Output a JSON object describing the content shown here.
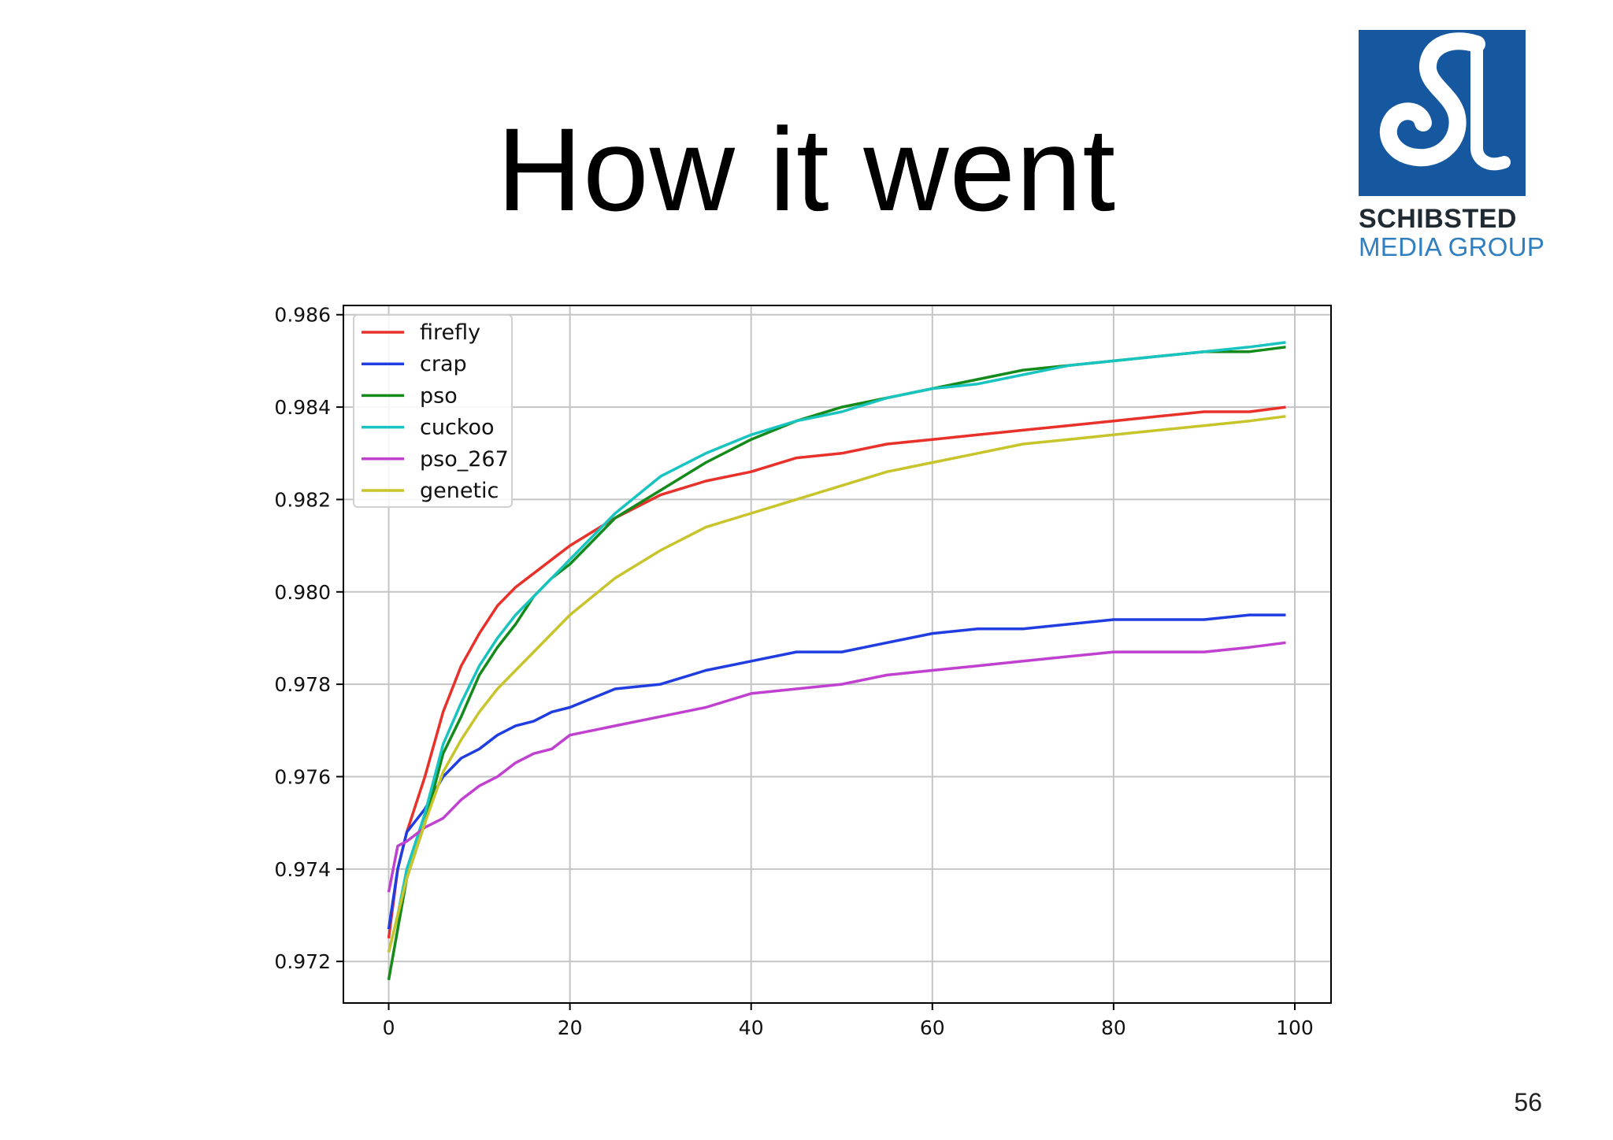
{
  "slide": {
    "title": "How it went",
    "page_number": "56"
  },
  "logo": {
    "line1": "SCHIBSTED",
    "line2": "MEDIA GROUP",
    "color": "#1558a0"
  },
  "chart_data": {
    "type": "line",
    "xlim": [
      -5,
      104
    ],
    "ylim": [
      0.9711,
      0.9862
    ],
    "x_ticks": [
      0,
      20,
      40,
      60,
      80,
      100
    ],
    "y_ticks": [
      0.972,
      0.974,
      0.976,
      0.978,
      0.98,
      0.982,
      0.984,
      0.986
    ],
    "x_tick_labels": [
      "0",
      "20",
      "40",
      "60",
      "80",
      "100"
    ],
    "y_tick_labels": [
      "0.972",
      "0.974",
      "0.976",
      "0.978",
      "0.980",
      "0.982",
      "0.984",
      "0.986"
    ],
    "grid": true,
    "legend_position": "top-left",
    "x": [
      0,
      1,
      2,
      4,
      6,
      8,
      10,
      12,
      14,
      16,
      18,
      20,
      25,
      30,
      35,
      40,
      45,
      50,
      55,
      60,
      65,
      70,
      75,
      80,
      85,
      90,
      95,
      99
    ],
    "series": [
      {
        "name": "firefly",
        "color": "#e8312a",
        "values": [
          0.9725,
          0.974,
          0.9748,
          0.976,
          0.9774,
          0.9784,
          0.9791,
          0.9797,
          0.9801,
          0.9804,
          0.9807,
          0.981,
          0.9816,
          0.9821,
          0.9824,
          0.9826,
          0.9829,
          0.983,
          0.9832,
          0.9833,
          0.9834,
          0.9835,
          0.9836,
          0.9837,
          0.9838,
          0.9839,
          0.9839,
          0.984
        ]
      },
      {
        "name": "crap",
        "color": "#1f3de0",
        "values": [
          0.9727,
          0.974,
          0.9748,
          0.9753,
          0.976,
          0.9764,
          0.9766,
          0.9769,
          0.9771,
          0.9772,
          0.9774,
          0.9775,
          0.9779,
          0.978,
          0.9783,
          0.9785,
          0.9787,
          0.9787,
          0.9789,
          0.9791,
          0.9792,
          0.9792,
          0.9793,
          0.9794,
          0.9794,
          0.9794,
          0.9795,
          0.9795
        ]
      },
      {
        "name": "pso",
        "color": "#138a1a",
        "values": [
          0.9716,
          0.9727,
          0.9738,
          0.975,
          0.9765,
          0.9773,
          0.9782,
          0.9788,
          0.9793,
          0.9799,
          0.9803,
          0.9806,
          0.9816,
          0.9822,
          0.9828,
          0.9833,
          0.9837,
          0.984,
          0.9842,
          0.9844,
          0.9846,
          0.9848,
          0.9849,
          0.985,
          0.9851,
          0.9852,
          0.9852,
          0.9853
        ]
      },
      {
        "name": "cuckoo",
        "color": "#19c4c0",
        "values": [
          0.9722,
          0.973,
          0.974,
          0.9752,
          0.9767,
          0.9776,
          0.9784,
          0.979,
          0.9795,
          0.9799,
          0.9803,
          0.9807,
          0.9817,
          0.9825,
          0.983,
          0.9834,
          0.9837,
          0.9839,
          0.9842,
          0.9844,
          0.9845,
          0.9847,
          0.9849,
          0.985,
          0.9851,
          0.9852,
          0.9853,
          0.9854
        ]
      },
      {
        "name": "pso_267",
        "color": "#c040d0",
        "values": [
          0.9735,
          0.9745,
          0.9746,
          0.9749,
          0.9751,
          0.9755,
          0.9758,
          0.976,
          0.9763,
          0.9765,
          0.9766,
          0.9769,
          0.9771,
          0.9773,
          0.9775,
          0.9778,
          0.9779,
          0.978,
          0.9782,
          0.9783,
          0.9784,
          0.9785,
          0.9786,
          0.9787,
          0.9787,
          0.9787,
          0.9788,
          0.9789
        ]
      },
      {
        "name": "genetic",
        "color": "#c8c42c",
        "values": [
          0.9722,
          0.973,
          0.9738,
          0.975,
          0.9761,
          0.9768,
          0.9774,
          0.9779,
          0.9783,
          0.9787,
          0.9791,
          0.9795,
          0.9803,
          0.9809,
          0.9814,
          0.9817,
          0.982,
          0.9823,
          0.9826,
          0.9828,
          0.983,
          0.9832,
          0.9833,
          0.9834,
          0.9835,
          0.9836,
          0.9837,
          0.9838
        ]
      }
    ]
  }
}
